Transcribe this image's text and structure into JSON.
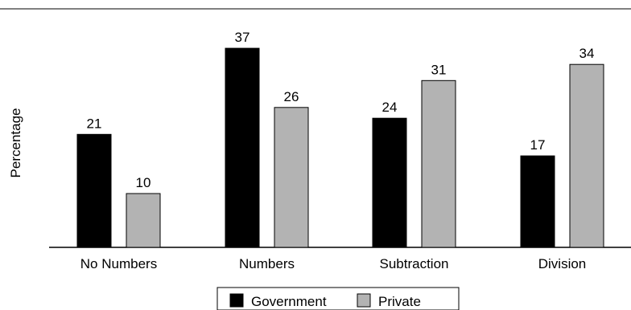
{
  "chart_data": {
    "type": "bar",
    "title": "",
    "xlabel": "",
    "ylabel": "Percentage",
    "categories": [
      "No Numbers",
      "Numbers",
      "Subtraction",
      "Division"
    ],
    "series": [
      {
        "name": "Government",
        "values": [
          21,
          37,
          24,
          17
        ],
        "color": "#000000"
      },
      {
        "name": "Private",
        "values": [
          10,
          26,
          31,
          34
        ],
        "color": "#b3b3b3"
      }
    ],
    "ylim": [
      0,
      40
    ],
    "grid": false,
    "data_labels": true,
    "legend_position": "bottom-center"
  }
}
